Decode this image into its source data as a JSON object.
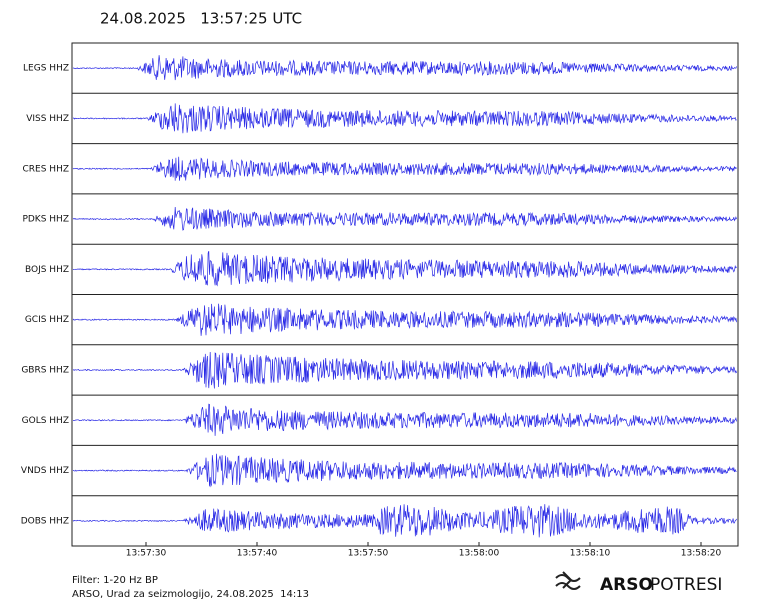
{
  "header": {
    "title": "24.08.2025   13:57:25 UTC"
  },
  "stations": [
    "LEGS HHZ",
    "VISS HHZ",
    "CRES HHZ",
    "PDKS HHZ",
    "BOJS HHZ",
    "GCIS HHZ",
    "GBRS HHZ",
    "GOLS HHZ",
    "VNDS HHZ",
    "DOBS HHZ"
  ],
  "x_axis": {
    "ticks": [
      "13:57:30",
      "13:57:40",
      "13:57:50",
      "13:58:00",
      "13:58:10",
      "13:58:20"
    ]
  },
  "footer": {
    "filter": "Filter: 1-20 Hz BP",
    "credit": "ARSO, Urad za seizmologijo, 24.08.2025  14:13"
  },
  "logo": {
    "brand": "ARSO",
    "product": "POTRESI"
  }
}
